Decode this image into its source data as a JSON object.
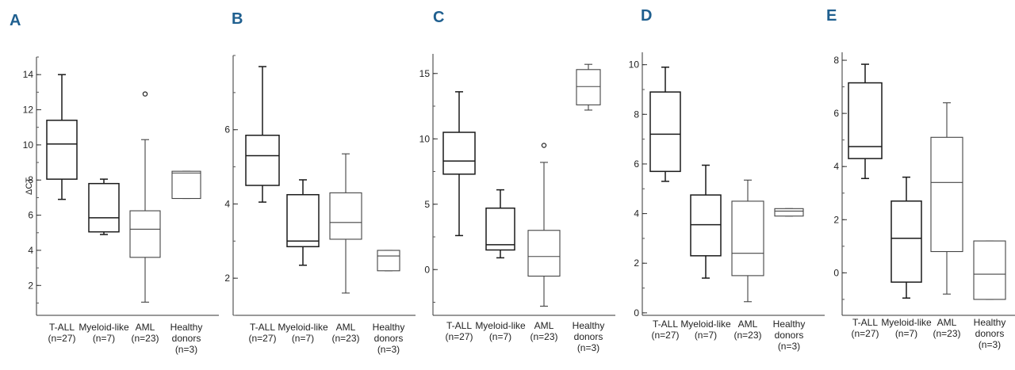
{
  "chart_data": [
    {
      "type": "box",
      "panel": "A",
      "ylabel": "ΔCT",
      "ylim": [
        0.3,
        15
      ],
      "yticks": [
        2,
        4,
        6,
        8,
        10,
        12,
        14
      ],
      "categories": [
        {
          "lines": [
            "T-ALL",
            "(n=27)"
          ]
        },
        {
          "lines": [
            "Myeloid-like",
            "(n=7)"
          ]
        },
        {
          "lines": [
            "AML",
            "(n=23)"
          ]
        },
        {
          "lines": [
            "Healthy",
            "donors",
            "(n=3)"
          ]
        }
      ],
      "boxes": [
        {
          "whisker_low": 6.9,
          "q1": 8.05,
          "median": 10.05,
          "q3": 11.4,
          "whisker_high": 14.0,
          "outliers": []
        },
        {
          "whisker_low": 4.9,
          "q1": 5.05,
          "median": 5.85,
          "q3": 7.8,
          "whisker_high": 8.05,
          "outliers": []
        },
        {
          "whisker_low": 1.05,
          "q1": 3.6,
          "median": 5.2,
          "q3": 6.25,
          "whisker_high": 10.3,
          "outliers": [
            12.9
          ]
        },
        {
          "whisker_low": 6.95,
          "q1": 6.95,
          "median": 8.4,
          "q3": 8.5,
          "whisker_high": 8.5,
          "outliers": []
        }
      ]
    },
    {
      "type": "box",
      "panel": "B",
      "ylabel": "",
      "ylim": [
        1.0,
        8.0
      ],
      "yticks": [
        2,
        4,
        6
      ],
      "categories": [
        {
          "lines": [
            "T-ALL",
            "(n=27)"
          ]
        },
        {
          "lines": [
            "Myeloid-like",
            "(n=7)"
          ]
        },
        {
          "lines": [
            "AML",
            "(n=23)"
          ]
        },
        {
          "lines": [
            "Healthy",
            "donors",
            "(n=3)"
          ]
        }
      ],
      "boxes": [
        {
          "whisker_low": 4.05,
          "q1": 4.5,
          "median": 5.3,
          "q3": 5.85,
          "whisker_high": 7.7,
          "outliers": []
        },
        {
          "whisker_low": 2.35,
          "q1": 2.85,
          "median": 3.0,
          "q3": 4.25,
          "whisker_high": 4.65,
          "outliers": []
        },
        {
          "whisker_low": 1.6,
          "q1": 3.05,
          "median": 3.5,
          "q3": 4.3,
          "whisker_high": 5.35,
          "outliers": []
        },
        {
          "whisker_low": 2.2,
          "q1": 2.2,
          "median": 2.6,
          "q3": 2.75,
          "whisker_high": 2.75,
          "outliers": []
        }
      ]
    },
    {
      "type": "box",
      "panel": "C",
      "ylabel": "",
      "ylim": [
        -3.5,
        16.5
      ],
      "yticks": [
        0,
        5,
        10,
        15
      ],
      "categories": [
        {
          "lines": [
            "T-ALL",
            "(n=27)"
          ]
        },
        {
          "lines": [
            "Myeloid-like",
            "(n=7)"
          ]
        },
        {
          "lines": [
            "AML",
            "(n=23)"
          ]
        },
        {
          "lines": [
            "Healthy",
            "donors",
            "(n=3)"
          ]
        }
      ],
      "boxes": [
        {
          "whisker_low": 2.6,
          "q1": 7.3,
          "median": 8.3,
          "q3": 10.5,
          "whisker_high": 13.6,
          "outliers": []
        },
        {
          "whisker_low": 0.9,
          "q1": 1.5,
          "median": 1.9,
          "q3": 4.7,
          "whisker_high": 6.1,
          "outliers": []
        },
        {
          "whisker_low": -2.8,
          "q1": -0.5,
          "median": 1.0,
          "q3": 3.0,
          "whisker_high": 8.2,
          "outliers": [
            9.5
          ]
        },
        {
          "whisker_low": 12.2,
          "q1": 12.6,
          "median": 14.0,
          "q3": 15.3,
          "whisker_high": 15.7,
          "outliers": []
        }
      ]
    },
    {
      "type": "box",
      "panel": "D",
      "ylabel": "",
      "ylim": [
        -0.1,
        10.5
      ],
      "yticks": [
        0,
        2,
        4,
        6,
        8,
        10
      ],
      "categories": [
        {
          "lines": [
            "T-ALL",
            "(n=27)"
          ]
        },
        {
          "lines": [
            "Myeloid-like",
            "(n=7)"
          ]
        },
        {
          "lines": [
            "AML",
            "(n=23)"
          ]
        },
        {
          "lines": [
            "Healthy",
            "donors",
            "(n=3)"
          ]
        }
      ],
      "boxes": [
        {
          "whisker_low": 5.3,
          "q1": 5.7,
          "median": 7.2,
          "q3": 8.9,
          "whisker_high": 9.9,
          "outliers": []
        },
        {
          "whisker_low": 1.4,
          "q1": 2.3,
          "median": 3.55,
          "q3": 4.75,
          "whisker_high": 5.95,
          "outliers": []
        },
        {
          "whisker_low": 0.45,
          "q1": 1.5,
          "median": 2.4,
          "q3": 4.5,
          "whisker_high": 5.35,
          "outliers": []
        },
        {
          "whisker_low": 3.9,
          "q1": 3.9,
          "median": 4.1,
          "q3": 4.2,
          "whisker_high": 4.2,
          "outliers": []
        }
      ]
    },
    {
      "type": "box",
      "panel": "E",
      "ylabel": "",
      "ylim": [
        -1.6,
        8.3
      ],
      "yticks": [
        0,
        2,
        4,
        6,
        8
      ],
      "categories": [
        {
          "lines": [
            "T-ALL",
            "(n=27)"
          ]
        },
        {
          "lines": [
            "Myeloid-like",
            "(n=7)"
          ]
        },
        {
          "lines": [
            "AML",
            "(n=23)"
          ]
        },
        {
          "lines": [
            "Healthy",
            "donors",
            "(n=3)"
          ]
        }
      ],
      "boxes": [
        {
          "whisker_low": 3.55,
          "q1": 4.3,
          "median": 4.75,
          "q3": 7.15,
          "whisker_high": 7.85,
          "outliers": []
        },
        {
          "whisker_low": -0.95,
          "q1": -0.35,
          "median": 1.3,
          "q3": 2.7,
          "whisker_high": 3.6,
          "outliers": []
        },
        {
          "whisker_low": -0.8,
          "q1": 0.8,
          "median": 3.4,
          "q3": 5.1,
          "whisker_high": 6.4,
          "outliers": []
        },
        {
          "whisker_low": -1.0,
          "q1": -1.0,
          "median": -0.05,
          "q3": 1.2,
          "whisker_high": 1.2,
          "outliers": []
        }
      ]
    }
  ]
}
